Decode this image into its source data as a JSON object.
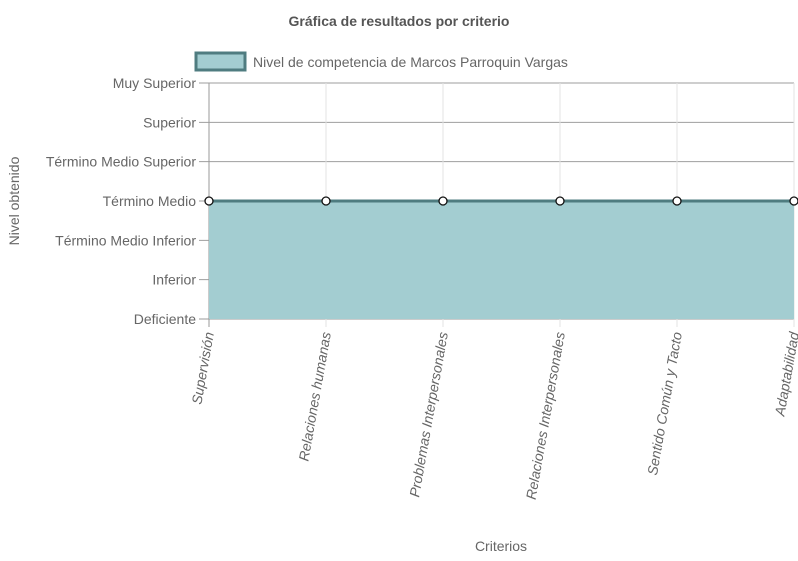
{
  "chart_data": {
    "type": "area",
    "title": "Gráfica de resultados por criterio",
    "xlabel": "Criterios",
    "ylabel": "Nivel obtenido",
    "y_levels": [
      "Deficiente",
      "Inferior",
      "Término Medio Inferior",
      "Término Medio",
      "Término Medio Superior",
      "Superior",
      "Muy Superior"
    ],
    "categories": [
      "Supervisión",
      "Relaciones humanas",
      "Problemas Interpersonales",
      "Relaciones Interpersonales",
      "Sentido Común y Tacto",
      "Adaptabilidad"
    ],
    "series": [
      {
        "name": "Nivel de competencia de Marcos Parroquin Vargas",
        "values": [
          "Término Medio",
          "Término Medio",
          "Término Medio",
          "Término Medio",
          "Término Medio",
          "Término Medio"
        ]
      }
    ],
    "legend_position": "top",
    "grid": true,
    "colors": {
      "fill": "#a3cdd1",
      "line": "#4f7c80",
      "grid": "#e3e3e3",
      "axis": "#999999"
    }
  }
}
